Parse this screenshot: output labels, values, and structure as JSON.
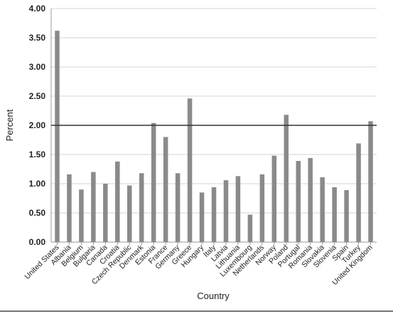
{
  "chart_data": {
    "type": "bar",
    "title": "",
    "xlabel": "Country",
    "ylabel": "Percent",
    "ylim": [
      0,
      4
    ],
    "yticks": [
      "0.00",
      "0.50",
      "1.00",
      "1.50",
      "2.00",
      "2.50",
      "3.00",
      "3.50",
      "4.00"
    ],
    "grid": true,
    "reference_line": 2.0,
    "bar_color": "#8a8a8a",
    "reference_line_color": "#333333",
    "categories": [
      "United States",
      "Albania",
      "Belgium",
      "Bulgaria",
      "Canada",
      "Croatia",
      "Czech Republic",
      "Denmark",
      "Estonia",
      "France",
      "Germany",
      "Greece",
      "Hungary",
      "Italy",
      "Latvia",
      "Lithuania",
      "Luxembourg",
      "Netherlands",
      "Norway",
      "Poland",
      "Portugal",
      "Romania",
      "Slovakia",
      "Slovenia",
      "Spain",
      "Turkey",
      "United Kingdom"
    ],
    "values": [
      3.62,
      1.16,
      0.9,
      1.2,
      1.0,
      1.38,
      0.97,
      1.18,
      2.04,
      1.8,
      1.18,
      2.46,
      0.85,
      0.94,
      1.06,
      1.13,
      0.47,
      1.16,
      1.48,
      2.18,
      1.39,
      1.44,
      1.11,
      0.94,
      0.89,
      1.69,
      2.07
    ]
  }
}
